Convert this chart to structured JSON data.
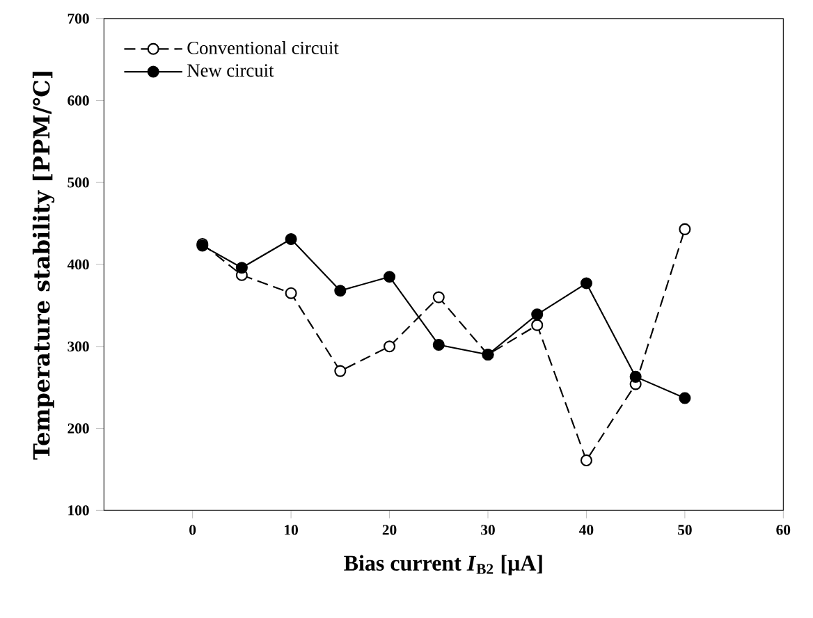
{
  "chart_data": {
    "type": "line",
    "xlabel": "Bias current *I*$_{B2}$ [μA]",
    "ylabel": "Temperature stability [PPM/℃]",
    "x": [
      1,
      5,
      10,
      15,
      20,
      25,
      30,
      35,
      40,
      45,
      50
    ],
    "series": [
      {
        "name": "Conventional circuit",
        "color": "#000000",
        "line_style": "dashed",
        "marker": "circle",
        "values": [
          425,
          387,
          365,
          270,
          300,
          360,
          290,
          326,
          161,
          254,
          443
        ]
      },
      {
        "name": "New circuit",
        "color": "#000000",
        "line_style": "solid",
        "marker": "circle",
        "values": [
          423,
          396,
          431,
          368,
          385,
          302,
          290,
          339,
          377,
          263,
          237
        ]
      }
    ],
    "xlim": [
      -9,
      60
    ],
    "ylim": [
      100,
      700
    ],
    "xticks": [
      0,
      10,
      20,
      30,
      40,
      50,
      60
    ],
    "yticks": [
      100,
      200,
      300,
      400,
      500,
      600,
      700
    ],
    "legend": "top left"
  }
}
